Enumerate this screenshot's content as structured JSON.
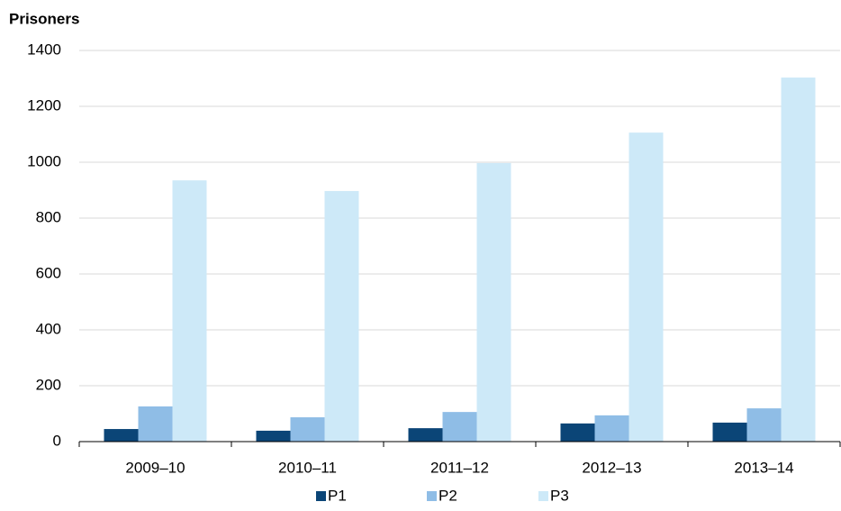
{
  "chart_data": {
    "type": "bar",
    "y_label": "Prisoners",
    "categories": [
      "2009–10",
      "2010–11",
      "2011–12",
      "2012–13",
      "2013–14"
    ],
    "series": [
      {
        "name": "P1",
        "color": "#0b4577",
        "values": [
          45,
          39,
          48,
          65,
          68
        ]
      },
      {
        "name": "P2",
        "color": "#8fbde6",
        "values": [
          126,
          87,
          106,
          94,
          119
        ]
      },
      {
        "name": "P3",
        "color": "#cde9f8",
        "values": [
          935,
          897,
          997,
          1106,
          1303
        ]
      }
    ],
    "ylim": [
      0,
      1400
    ],
    "yticks": [
      0,
      200,
      400,
      600,
      800,
      1000,
      1200,
      1400
    ],
    "grid": true,
    "legend": "bottom"
  }
}
